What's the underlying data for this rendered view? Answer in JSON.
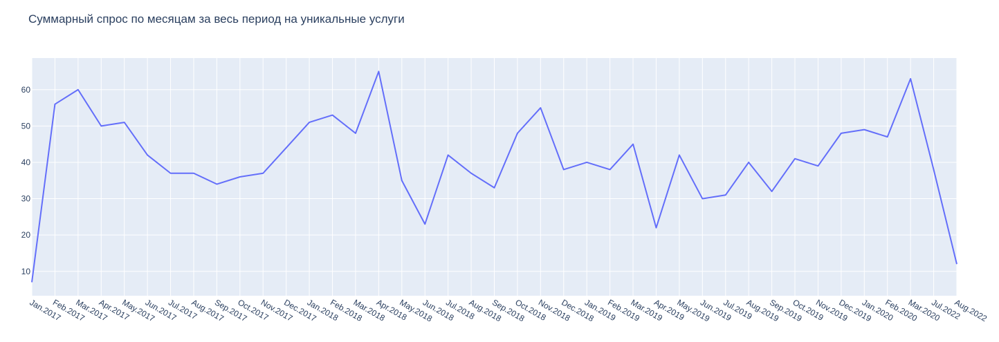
{
  "chart_data": {
    "type": "line",
    "title": "Суммарный спрос по месяцам за весь период на уникальные услуги",
    "xlabel": "",
    "ylabel": "",
    "x": [
      "Jan.2017",
      "Feb.2017",
      "Mar.2017",
      "Apr.2017",
      "May.2017",
      "Jun.2017",
      "Jul.2017",
      "Aug.2017",
      "Sep.2017",
      "Oct.2017",
      "Nov.2017",
      "Dec.2017",
      "Jan.2018",
      "Feb.2018",
      "Mar.2018",
      "Apr.2018",
      "May.2018",
      "Jun.2018",
      "Jul.2018",
      "Aug.2018",
      "Sep.2018",
      "Oct.2018",
      "Nov.2018",
      "Dec.2018",
      "Jan.2019",
      "Feb.2019",
      "Mar.2019",
      "Apr.2019",
      "May.2019",
      "Jun.2019",
      "Jul.2019",
      "Aug.2019",
      "Sep.2019",
      "Oct.2019",
      "Nov.2019",
      "Dec.2019",
      "Jan.2020",
      "Feb.2020",
      "Mar.2020",
      "Jul.2022",
      "Aug.2022"
    ],
    "series": [
      {
        "values": [
          7,
          56,
          60,
          50,
          51,
          42,
          37,
          37,
          34,
          36,
          37,
          44,
          51,
          53,
          48,
          65,
          35,
          23,
          42,
          37,
          33,
          48,
          55,
          38,
          40,
          38,
          45,
          22,
          42,
          30,
          31,
          40,
          32,
          41,
          39,
          48,
          49,
          47,
          63,
          38,
          12
        ]
      }
    ],
    "yticks": [
      10,
      20,
      30,
      40,
      50,
      60
    ],
    "ylim": [
      3.3,
      68.7
    ],
    "grid": true,
    "legend": "none",
    "colors": {
      "line": "#636efa",
      "plot_bg": "#e5ecf6",
      "grid": "#ffffff",
      "text": "#2a3f5f"
    }
  }
}
